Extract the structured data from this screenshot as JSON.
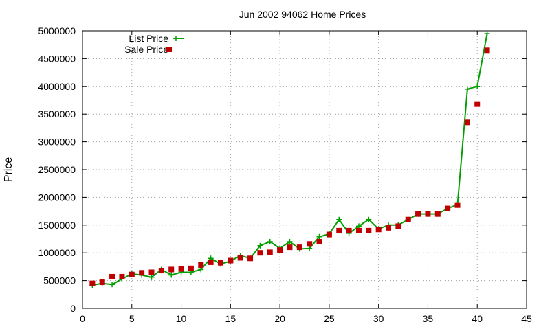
{
  "chart_data": {
    "type": "line",
    "title": "Jun 2002 94062 Home Prices",
    "xlabel": "",
    "ylabel": "Price",
    "xlim": [
      0,
      45
    ],
    "ylim": [
      0,
      5000000
    ],
    "x_ticks": [
      0,
      5,
      10,
      15,
      20,
      25,
      30,
      35,
      40,
      45
    ],
    "y_ticks": [
      0,
      500000,
      1000000,
      1500000,
      2000000,
      2500000,
      3000000,
      3500000,
      4000000,
      4500000,
      5000000
    ],
    "grid": true,
    "legend_position": "top-left",
    "series": [
      {
        "name": "List Price",
        "style": "line-with-plus-markers",
        "color": "#00a000",
        "x": [
          1,
          2,
          3,
          4,
          5,
          6,
          7,
          8,
          9,
          10,
          11,
          12,
          13,
          14,
          15,
          16,
          17,
          18,
          19,
          20,
          21,
          22,
          23,
          24,
          25,
          26,
          27,
          28,
          29,
          30,
          31,
          32,
          33,
          34,
          35,
          36,
          37,
          38,
          39,
          40,
          41
        ],
        "values": [
          420000,
          450000,
          430000,
          530000,
          620000,
          600000,
          560000,
          700000,
          600000,
          650000,
          650000,
          700000,
          900000,
          800000,
          850000,
          950000,
          900000,
          1130000,
          1200000,
          1080000,
          1200000,
          1070000,
          1080000,
          1290000,
          1340000,
          1600000,
          1350000,
          1480000,
          1600000,
          1430000,
          1500000,
          1500000,
          1600000,
          1700000,
          1700000,
          1700000,
          1800000,
          1870000,
          3950000,
          4000000,
          4950000
        ]
      },
      {
        "name": "Sale Price",
        "style": "square-markers",
        "color": "#c00000",
        "x": [
          1,
          2,
          3,
          4,
          5,
          6,
          7,
          8,
          9,
          10,
          11,
          12,
          13,
          14,
          15,
          16,
          17,
          18,
          19,
          20,
          21,
          22,
          23,
          24,
          25,
          26,
          27,
          28,
          29,
          30,
          31,
          32,
          33,
          34,
          35,
          36,
          37,
          38,
          39,
          40,
          41
        ],
        "values": [
          450000,
          470000,
          570000,
          570000,
          610000,
          640000,
          650000,
          680000,
          700000,
          710000,
          720000,
          780000,
          830000,
          820000,
          860000,
          910000,
          900000,
          1000000,
          1010000,
          1050000,
          1100000,
          1100000,
          1160000,
          1200000,
          1330000,
          1400000,
          1400000,
          1400000,
          1400000,
          1420000,
          1450000,
          1480000,
          1600000,
          1700000,
          1700000,
          1700000,
          1800000,
          1860000,
          3350000,
          3680000,
          4650000
        ]
      }
    ]
  }
}
